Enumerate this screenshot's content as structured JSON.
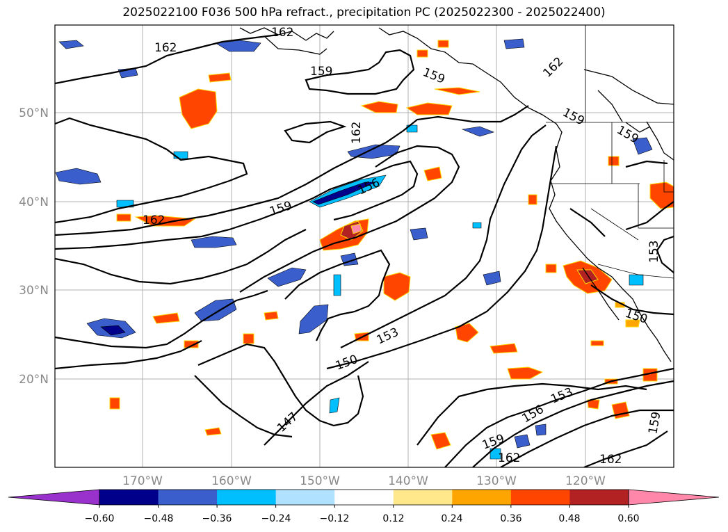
{
  "title": "2025022100 F036 500 hPa refract., precipitation PC (2025022300 - 2025022400)",
  "map": {
    "lat_labels": [
      "50°N",
      "40°N",
      "30°N",
      "20°N"
    ],
    "lon_labels": [
      "170°W",
      "160°W",
      "150°W",
      "140°W",
      "130°W",
      "120°W"
    ],
    "contour_labels": [
      "162",
      "162",
      "159",
      "159",
      "162",
      "159",
      "162",
      "159",
      "162",
      "156",
      "159",
      "153",
      "150",
      "153",
      "150",
      "147",
      "156",
      "153",
      "159",
      "159",
      "162",
      "162"
    ],
    "grid": true,
    "axis_color": "#888888"
  },
  "colorbar": {
    "ticks": [
      "−0.60",
      "−0.48",
      "−0.36",
      "−0.24",
      "−0.12",
      "0.12",
      "0.24",
      "0.36",
      "0.48",
      "0.60"
    ],
    "colors": [
      "#9932cc",
      "#00008b",
      "#3a5fcd",
      "#00bfff",
      "#b0e2ff",
      "#ffffff",
      "#ffe88c",
      "#ffa500",
      "#ff4500",
      "#b22222",
      "#ff88aa"
    ]
  }
}
